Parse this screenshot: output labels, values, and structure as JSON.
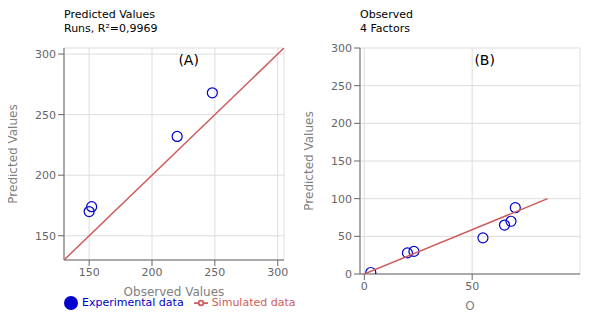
{
  "chart_data": [
    {
      "type": "scatter",
      "title": "Predicted Values",
      "subtitle": "Runs, R²=0,9969",
      "annotations": [
        "(A)"
      ],
      "x_label": "Observed Values",
      "y_label": "Predicted Values",
      "xlim": [
        130,
        305
      ],
      "ylim": [
        130,
        305
      ],
      "xticks": [
        150,
        200,
        250,
        300
      ],
      "yticks": [
        150,
        200,
        250,
        300
      ],
      "grid": true,
      "legend": "lower left",
      "series": [
        {
          "name": "Experimental data",
          "type": "scatter",
          "marker": "circle",
          "color": "#0000CD",
          "x": [
            150,
            152,
            220,
            248
          ],
          "values": [
            170,
            174,
            232,
            268
          ]
        },
        {
          "name": "Simulated data",
          "type": "line",
          "color": "#CD5C5C",
          "x": [
            130,
            305
          ],
          "values": [
            130,
            305
          ]
        }
      ]
    },
    {
      "type": "scatter",
      "title": "Observed",
      "subtitle": "4 Factors",
      "annotations": [
        "(B)"
      ],
      "x_label": "O",
      "y_label": "Predicted Values",
      "xlim": [
        -2,
        100
      ],
      "ylim": [
        0,
        300
      ],
      "xticks": [
        0,
        50
      ],
      "yticks": [
        0,
        50,
        100,
        150,
        200,
        250,
        300
      ],
      "grid": true,
      "series": [
        {
          "name": "Experimental data",
          "type": "scatter",
          "marker": "circle",
          "color": "#0000CD",
          "x": [
            3,
            20,
            23,
            55,
            65,
            68,
            70
          ],
          "values": [
            2,
            28,
            30,
            48,
            65,
            70,
            88
          ]
        },
        {
          "name": "Simulated data",
          "type": "line",
          "color": "#CD5C5C",
          "x": [
            0,
            85
          ],
          "values": [
            0,
            100
          ]
        }
      ]
    }
  ]
}
